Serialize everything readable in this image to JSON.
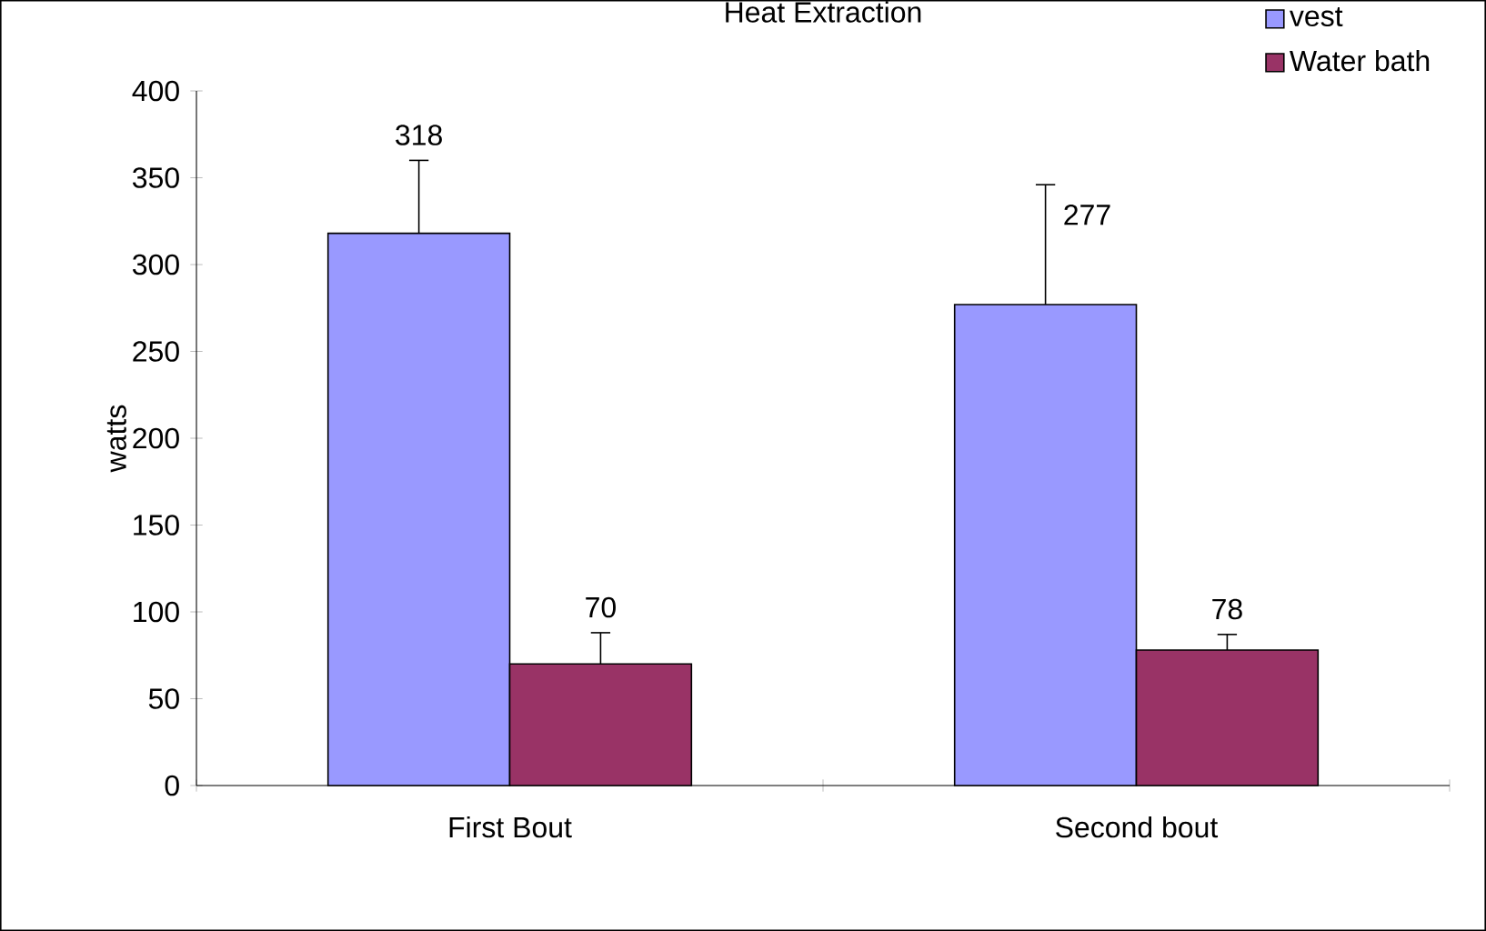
{
  "chart_data": {
    "type": "bar",
    "title": "Heat Extraction",
    "ylabel": "watts",
    "categories": [
      "First Bout",
      "Second bout"
    ],
    "series": [
      {
        "name": "vest",
        "color": "#9999ff",
        "values": [
          318,
          277
        ],
        "errors": [
          [
            318,
            360
          ],
          [
            277,
            346
          ]
        ]
      },
      {
        "name": "Water bath",
        "color": "#993366",
        "values": [
          70,
          78
        ],
        "errors": [
          [
            70,
            88
          ],
          [
            78,
            87
          ]
        ]
      }
    ],
    "ylim": [
      0,
      400
    ],
    "yticks": [
      0,
      50,
      100,
      150,
      200,
      250,
      300,
      350,
      400
    ],
    "data_labels": true,
    "legend": "top right",
    "grid": false
  }
}
